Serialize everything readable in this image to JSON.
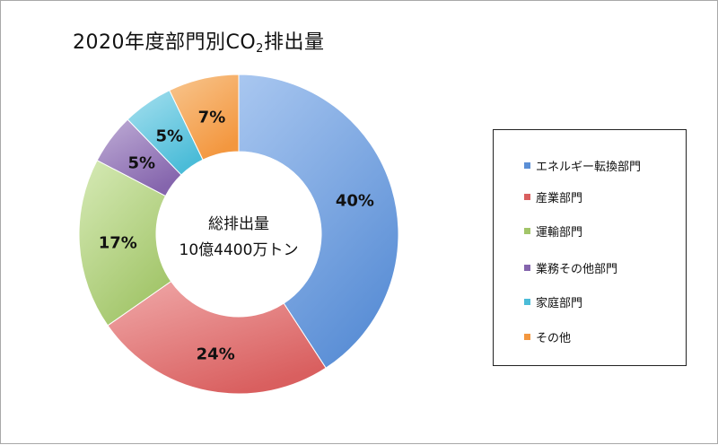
{
  "chart_data": {
    "type": "pie",
    "title": "2020年度部門別CO",
    "title_subscript": "2",
    "title_suffix": "排出量",
    "center_label": [
      "総排出量",
      "10億4400万トン"
    ],
    "categories": [
      "エネルギー転換部門",
      "産業部門",
      "運輸部門",
      "業務その他部門",
      "家庭部門",
      "その他"
    ],
    "values": [
      40,
      24,
      17,
      5,
      5,
      7
    ],
    "value_labels": [
      "40%",
      "24%",
      "17%",
      "5%",
      "5%",
      "7%"
    ],
    "colors": [
      "#5b8fd6",
      "#d95f5f",
      "#a2c569",
      "#8565ad",
      "#4bbcd8",
      "#f3973f"
    ],
    "colors_light": [
      "#a9c7f0",
      "#f0a9a9",
      "#d6eab6",
      "#bfadd6",
      "#a6e0ef",
      "#f8c68f"
    ],
    "legend_position": "right",
    "donut": true
  }
}
